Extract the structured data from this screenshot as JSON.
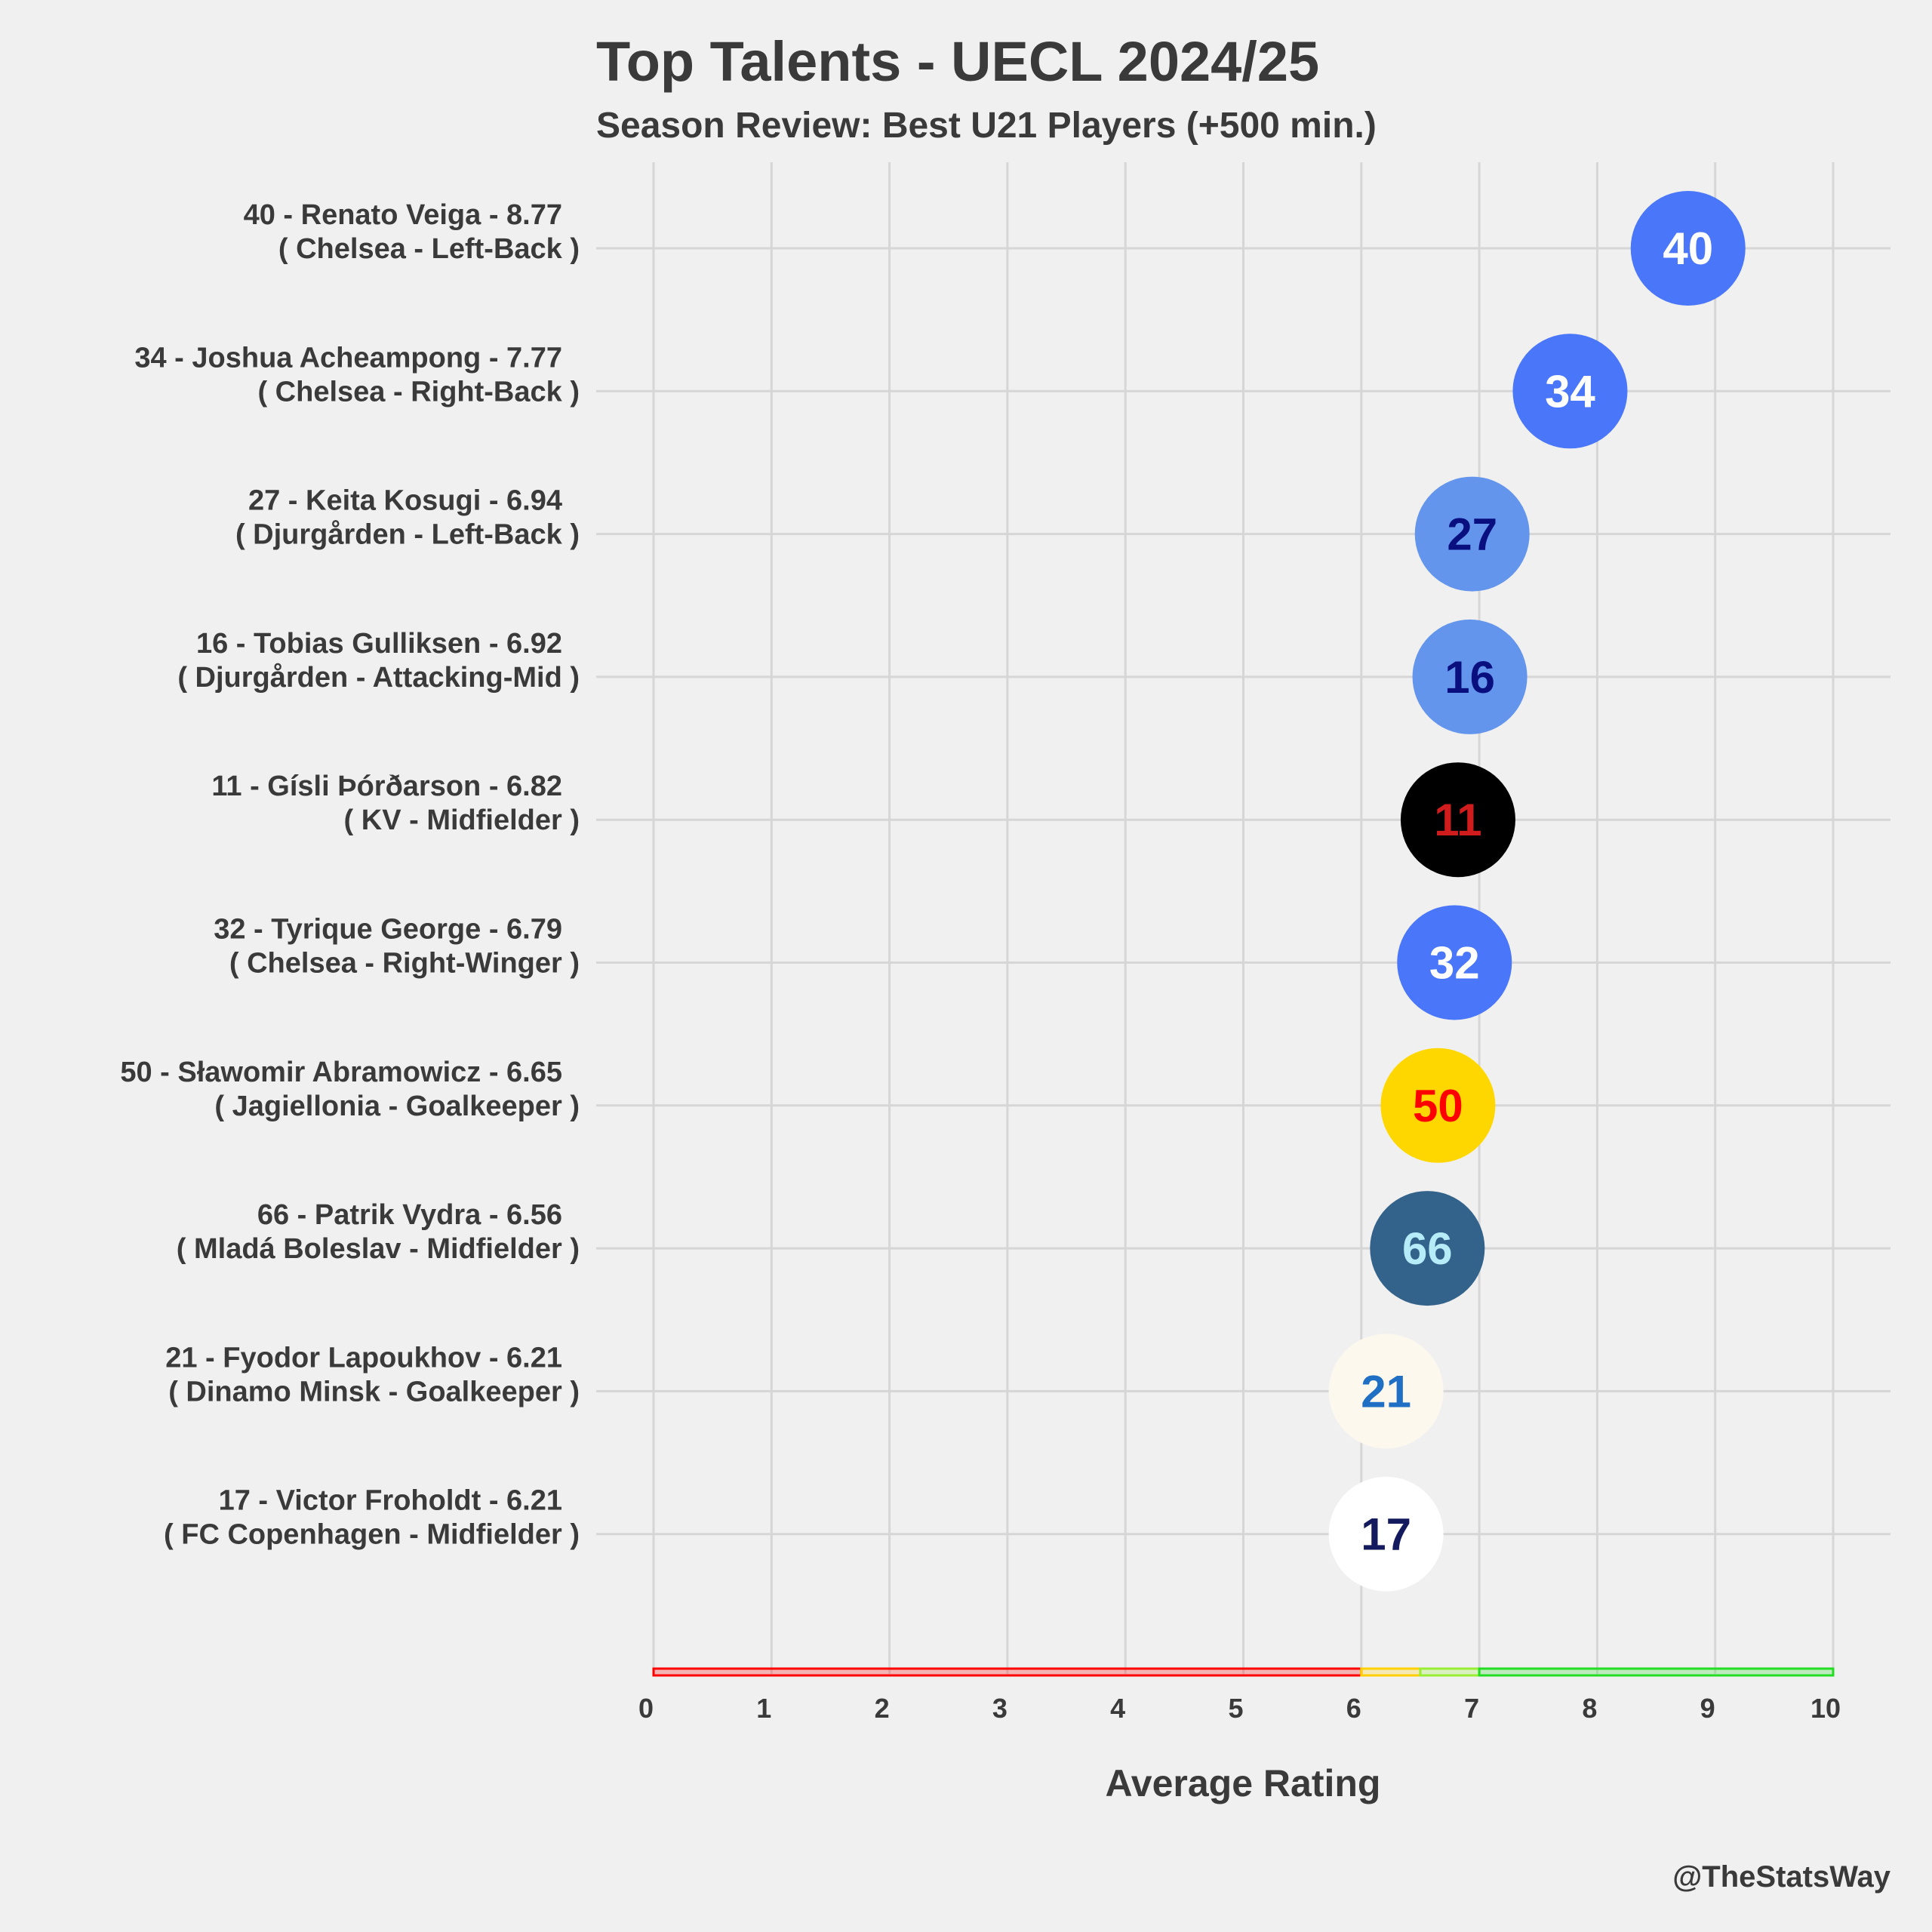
{
  "chart_data": {
    "type": "scatter",
    "title": "Top Talents - UECL 2024/25",
    "subtitle": "Season Review: Best U21 Players (+500 min.)",
    "xlabel": "Average Rating",
    "ylabel": "",
    "xlim": [
      0,
      10
    ],
    "xticks": [
      "0",
      "1",
      "2",
      "3",
      "4",
      "5",
      "6",
      "7",
      "8",
      "9",
      "10"
    ],
    "grid": true,
    "credit": "@TheStatsWay",
    "rating_bands": [
      {
        "from": 0,
        "to": 6,
        "color": "#ff0000"
      },
      {
        "from": 6,
        "to": 6.5,
        "color": "#ffd000"
      },
      {
        "from": 6.5,
        "to": 7,
        "color": "#99ee33"
      },
      {
        "from": 7,
        "to": 10,
        "color": "#22dd22"
      }
    ],
    "players": [
      {
        "label": "40 - Renato Veiga - 8.77",
        "sub": "( Chelsea - Left-Back )",
        "number": "40",
        "rating": 8.77,
        "fill": "#4a76fa",
        "text_color": "#ffffff"
      },
      {
        "label": "34 - Joshua Acheampong - 7.77",
        "sub": "( Chelsea - Right-Back )",
        "number": "34",
        "rating": 7.77,
        "fill": "#4a76fa",
        "text_color": "#ffffff"
      },
      {
        "label": "27 - Keita Kosugi - 6.94",
        "sub": "( Djurgården - Left-Back )",
        "number": "27",
        "rating": 6.94,
        "fill": "#6495ed",
        "text_color": "#0a0f80"
      },
      {
        "label": "16 - Tobias Gulliksen - 6.92",
        "sub": "( Djurgården - Attacking-Mid )",
        "number": "16",
        "rating": 6.92,
        "fill": "#6495ed",
        "text_color": "#0a0f80"
      },
      {
        "label": "11 - Gísli Þórðarson - 6.82",
        "sub": "( KV - Midfielder )",
        "number": "11",
        "rating": 6.82,
        "fill": "#000000",
        "text_color": "#d01c1c"
      },
      {
        "label": "32 - Tyrique George - 6.79",
        "sub": "( Chelsea - Right-Winger )",
        "number": "32",
        "rating": 6.79,
        "fill": "#4a76fa",
        "text_color": "#ffffff"
      },
      {
        "label": "50 - Sławomir Abramowicz - 6.65",
        "sub": "( Jagiellonia - Goalkeeper )",
        "number": "50",
        "rating": 6.65,
        "fill": "#ffd700",
        "text_color": "#ff0000"
      },
      {
        "label": "66 - Patrik Vydra - 6.56",
        "sub": "( Mladá Boleslav - Midfielder )",
        "number": "66",
        "rating": 6.56,
        "fill": "#33628a",
        "text_color": "#b6ecf8"
      },
      {
        "label": "21 - Fyodor Lapoukhov - 6.21",
        "sub": "( Dinamo Minsk - Goalkeeper )",
        "number": "21",
        "rating": 6.21,
        "fill": "#fdf8ee",
        "text_color": "#1f6fc4"
      },
      {
        "label": "17 - Victor Froholdt - 6.21",
        "sub": "( FC Copenhagen - Midfielder )",
        "number": "17",
        "rating": 6.21,
        "fill": "#ffffff",
        "text_color": "#141a5e"
      }
    ]
  }
}
